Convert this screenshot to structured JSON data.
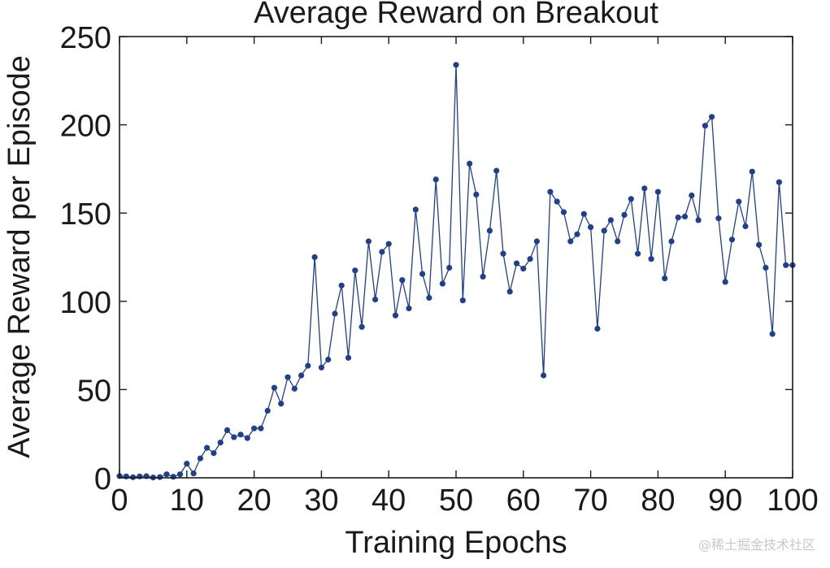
{
  "chart_data": {
    "type": "line",
    "title": "Average Reward on Breakout",
    "xlabel": "Training Epochs",
    "ylabel": "Average Reward per Episode",
    "xlim": [
      0,
      100
    ],
    "ylim": [
      0,
      250
    ],
    "xticks": [
      0,
      10,
      20,
      30,
      40,
      50,
      60,
      70,
      80,
      90,
      100
    ],
    "yticks": [
      0,
      50,
      100,
      150,
      200,
      250
    ],
    "grid": false,
    "series": [
      {
        "name": "Average Reward",
        "color": "#1f3f8f",
        "x": [
          0,
          1,
          2,
          3,
          4,
          5,
          6,
          7,
          8,
          9,
          10,
          11,
          12,
          13,
          14,
          15,
          16,
          17,
          18,
          19,
          20,
          21,
          22,
          23,
          24,
          25,
          26,
          27,
          28,
          29,
          30,
          31,
          32,
          33,
          34,
          35,
          36,
          37,
          38,
          39,
          40,
          41,
          42,
          43,
          44,
          45,
          46,
          47,
          48,
          49,
          50,
          51,
          52,
          53,
          54,
          55,
          56,
          57,
          58,
          59,
          60,
          61,
          62,
          63,
          64,
          65,
          66,
          67,
          68,
          69,
          70,
          71,
          72,
          73,
          74,
          75,
          76,
          77,
          78,
          79,
          80,
          81,
          82,
          83,
          84,
          85,
          86,
          87,
          88,
          89,
          90,
          91,
          92,
          93,
          94,
          95,
          96,
          97,
          98,
          99,
          100
        ],
        "values": [
          1.0,
          0.8,
          0.3,
          0.8,
          0.9,
          0.2,
          0.4,
          2.0,
          0.6,
          2.0,
          8.0,
          2.5,
          11.0,
          17.0,
          14.0,
          20.0,
          27.0,
          23.0,
          24.5,
          22.5,
          28.0,
          28.0,
          38.0,
          51.0,
          42.0,
          57.0,
          50.5,
          58.0,
          63.5,
          125.0,
          62.5,
          67.0,
          93.0,
          109.0,
          68.0,
          117.5,
          85.5,
          134.0,
          101.0,
          128.0,
          132.5,
          92.0,
          112.0,
          96.0,
          152.0,
          115.5,
          102.0,
          169.0,
          110.0,
          119.0,
          234.0,
          100.5,
          178.0,
          160.5,
          114.0,
          140.0,
          174.0,
          127.0,
          105.5,
          121.5,
          118.5,
          124.0,
          134.0,
          58.0,
          162.0,
          156.5,
          150.5,
          134.0,
          138.0,
          149.5,
          142.0,
          84.5,
          140.0,
          146.0,
          134.0,
          149.0,
          158.0,
          127.0,
          164.0,
          124.0,
          162.0,
          113.0,
          134.0,
          147.5,
          148.0,
          160.0,
          146.0,
          199.5,
          204.5,
          147.0,
          111.0,
          135.0,
          156.5,
          142.5,
          173.5,
          132.0,
          119.0,
          81.5,
          167.5,
          120.5,
          120.5
        ]
      }
    ]
  },
  "watermark": "@稀土掘金技术社区"
}
